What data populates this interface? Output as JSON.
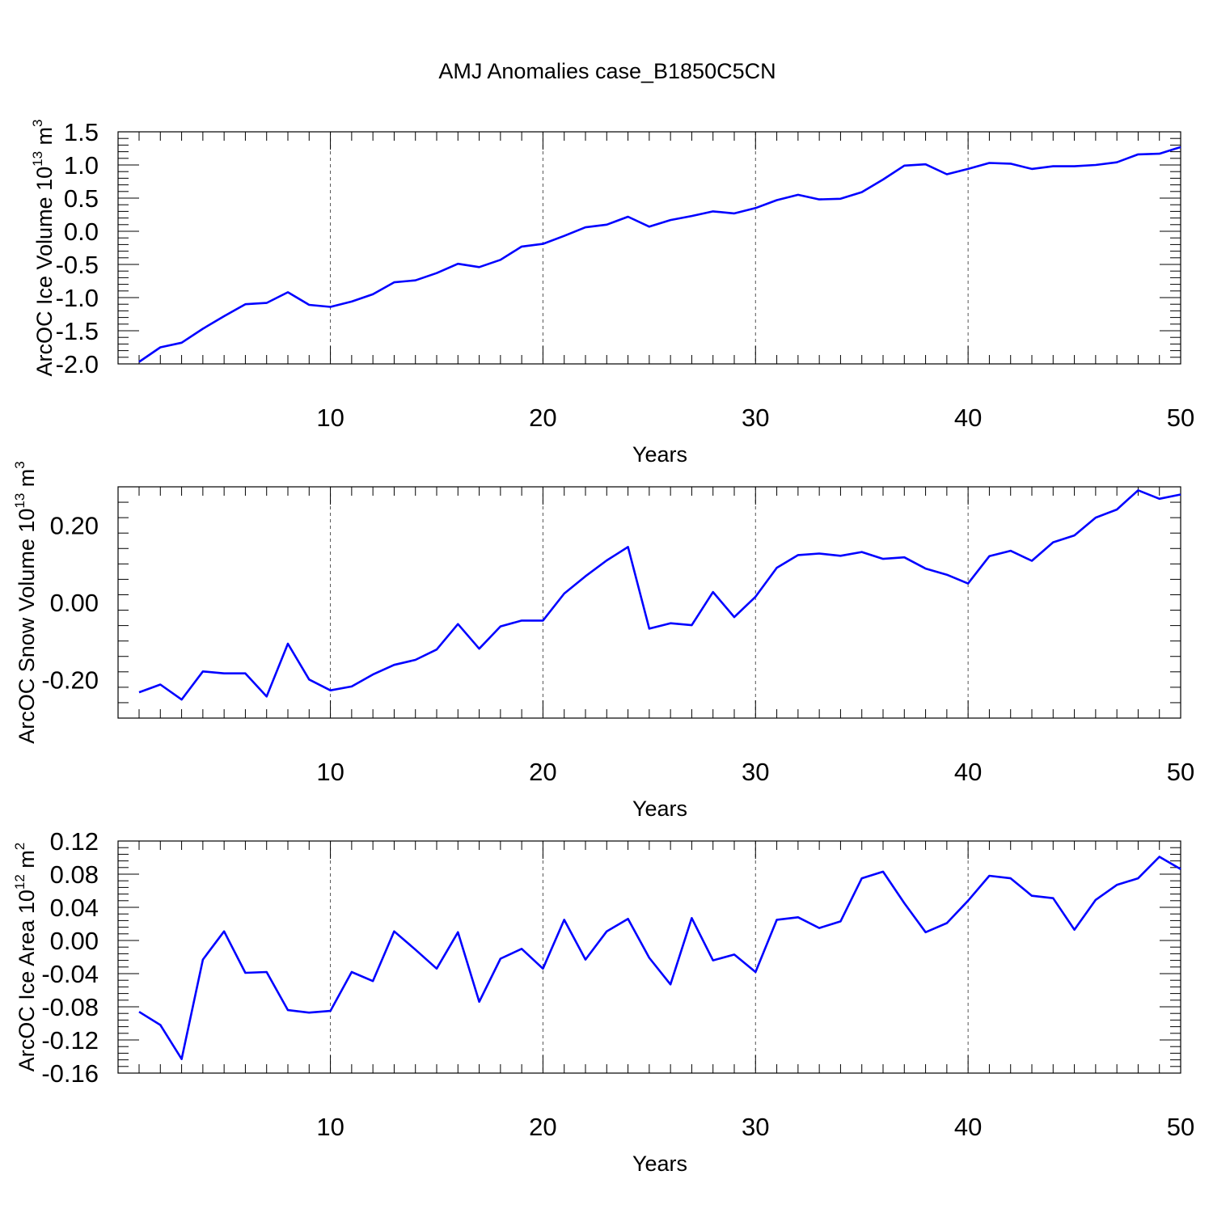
{
  "title": "AMJ Anomalies case_B1850C5CN",
  "colors": {
    "line": "#0000ff",
    "axis": "#000000",
    "grid": "#555555"
  },
  "chart_data": [
    {
      "type": "line",
      "xlabel": "Years",
      "ylabel": {
        "main": "ArcOC Ice Volume 10",
        "sup": "13",
        "unit": " m",
        "unit_sup": "3"
      },
      "xlim": [
        1,
        50
      ],
      "ylim": [
        -2.0,
        1.5
      ],
      "xticks": [
        10,
        20,
        30,
        40,
        50
      ],
      "xtick_labels": [
        "10",
        "20",
        "30",
        "40",
        "50"
      ],
      "yticks": [
        -2.0,
        -1.5,
        -1.0,
        -0.5,
        0.0,
        0.5,
        1.0,
        1.5
      ],
      "ytick_labels": [
        "-2.0",
        "-1.5",
        "-1.0",
        "-0.5",
        "0.0",
        "0.5",
        "1.0",
        "1.5"
      ],
      "x_grid": "dashed",
      "x": [
        1,
        2,
        3,
        4,
        5,
        6,
        7,
        8,
        9,
        10,
        11,
        12,
        13,
        14,
        15,
        16,
        17,
        18,
        19,
        20,
        21,
        22,
        23,
        24,
        25,
        26,
        27,
        28,
        29,
        30,
        31,
        32,
        33,
        34,
        35,
        36,
        37,
        38,
        39,
        40,
        41,
        42,
        43,
        44,
        45,
        46,
        47,
        48,
        49,
        50
      ],
      "values": [
        -1.97,
        -1.75,
        -1.68,
        -1.47,
        -1.28,
        -1.1,
        -1.08,
        -0.92,
        -1.11,
        -1.14,
        -1.06,
        -0.95,
        -0.77,
        -0.74,
        -0.63,
        -0.49,
        -0.54,
        -0.43,
        -0.23,
        -0.19,
        -0.07,
        0.06,
        0.1,
        0.22,
        0.07,
        0.17,
        0.23,
        0.3,
        0.27,
        0.35,
        0.47,
        0.55,
        0.48,
        0.49,
        0.59,
        0.78,
        0.99,
        1.01,
        0.86,
        0.94,
        1.03,
        1.02,
        0.94,
        0.98,
        0.98,
        1.0,
        1.04,
        1.16,
        1.17,
        1.27
      ]
    },
    {
      "type": "line",
      "xlabel": "Years",
      "ylabel": {
        "main": "ArcOC Snow Volume 10",
        "sup": "13",
        "unit": " m",
        "unit_sup": "3"
      },
      "xlim": [
        1,
        50
      ],
      "ylim": [
        -0.3,
        0.3
      ],
      "xticks": [
        10,
        20,
        30,
        40,
        50
      ],
      "xtick_labels": [
        "10",
        "20",
        "30",
        "40",
        "50"
      ],
      "yticks": [
        -0.2,
        0.0,
        0.2
      ],
      "ytick_labels": [
        "-0.20",
        "0.00",
        "0.20"
      ],
      "x_grid": "dashed",
      "x": [
        1,
        2,
        3,
        4,
        5,
        6,
        7,
        8,
        9,
        10,
        11,
        12,
        13,
        14,
        15,
        16,
        17,
        18,
        19,
        20,
        21,
        22,
        23,
        24,
        25,
        26,
        27,
        28,
        29,
        30,
        31,
        32,
        33,
        34,
        35,
        36,
        37,
        38,
        39,
        40,
        41,
        42,
        43,
        44,
        45,
        46,
        47,
        48,
        49,
        50
      ],
      "values": [
        -0.233,
        -0.213,
        -0.252,
        -0.179,
        -0.184,
        -0.184,
        -0.244,
        -0.107,
        -0.2,
        -0.228,
        -0.218,
        -0.187,
        -0.162,
        -0.149,
        -0.122,
        -0.056,
        -0.12,
        -0.062,
        -0.047,
        -0.047,
        0.023,
        0.068,
        0.109,
        0.144,
        -0.068,
        -0.054,
        -0.059,
        0.027,
        -0.038,
        0.015,
        0.09,
        0.123,
        0.127,
        0.121,
        0.131,
        0.113,
        0.117,
        0.088,
        0.072,
        0.049,
        0.12,
        0.134,
        0.108,
        0.156,
        0.174,
        0.22,
        0.241,
        0.291,
        0.269,
        0.28
      ]
    },
    {
      "type": "line",
      "xlabel": "Years",
      "ylabel": {
        "main": "ArcOC Ice Area 10",
        "sup": "12",
        "unit": " m",
        "unit_sup": "2"
      },
      "xlim": [
        1,
        50
      ],
      "ylim": [
        -0.16,
        0.12
      ],
      "xticks": [
        10,
        20,
        30,
        40,
        50
      ],
      "xtick_labels": [
        "10",
        "20",
        "30",
        "40",
        "50"
      ],
      "yticks": [
        -0.16,
        -0.12,
        -0.08,
        -0.04,
        0.0,
        0.04,
        0.08,
        0.12
      ],
      "ytick_labels": [
        "-0.16",
        "-0.12",
        "-0.08",
        "-0.04",
        "0.00",
        "0.04",
        "0.08",
        "0.12"
      ],
      "x_grid": "dashed",
      "x": [
        1,
        2,
        3,
        4,
        5,
        6,
        7,
        8,
        9,
        10,
        11,
        12,
        13,
        14,
        15,
        16,
        17,
        18,
        19,
        20,
        21,
        22,
        23,
        24,
        25,
        26,
        27,
        28,
        29,
        30,
        31,
        32,
        33,
        34,
        35,
        36,
        37,
        38,
        39,
        40,
        41,
        42,
        43,
        44,
        45,
        46,
        47,
        48,
        49,
        50
      ],
      "values": [
        -0.086,
        -0.102,
        -0.143,
        -0.023,
        0.011,
        -0.039,
        -0.038,
        -0.084,
        -0.087,
        -0.085,
        -0.038,
        -0.049,
        0.011,
        -0.011,
        -0.034,
        0.01,
        -0.074,
        -0.022,
        -0.01,
        -0.034,
        0.025,
        -0.023,
        0.011,
        0.026,
        -0.021,
        -0.053,
        0.027,
        -0.024,
        -0.017,
        -0.038,
        0.025,
        0.028,
        0.015,
        0.023,
        0.075,
        0.083,
        0.045,
        0.01,
        0.021,
        0.048,
        0.078,
        0.075,
        0.054,
        0.051,
        0.013,
        0.049,
        0.067,
        0.075,
        0.101,
        0.086
      ]
    }
  ]
}
